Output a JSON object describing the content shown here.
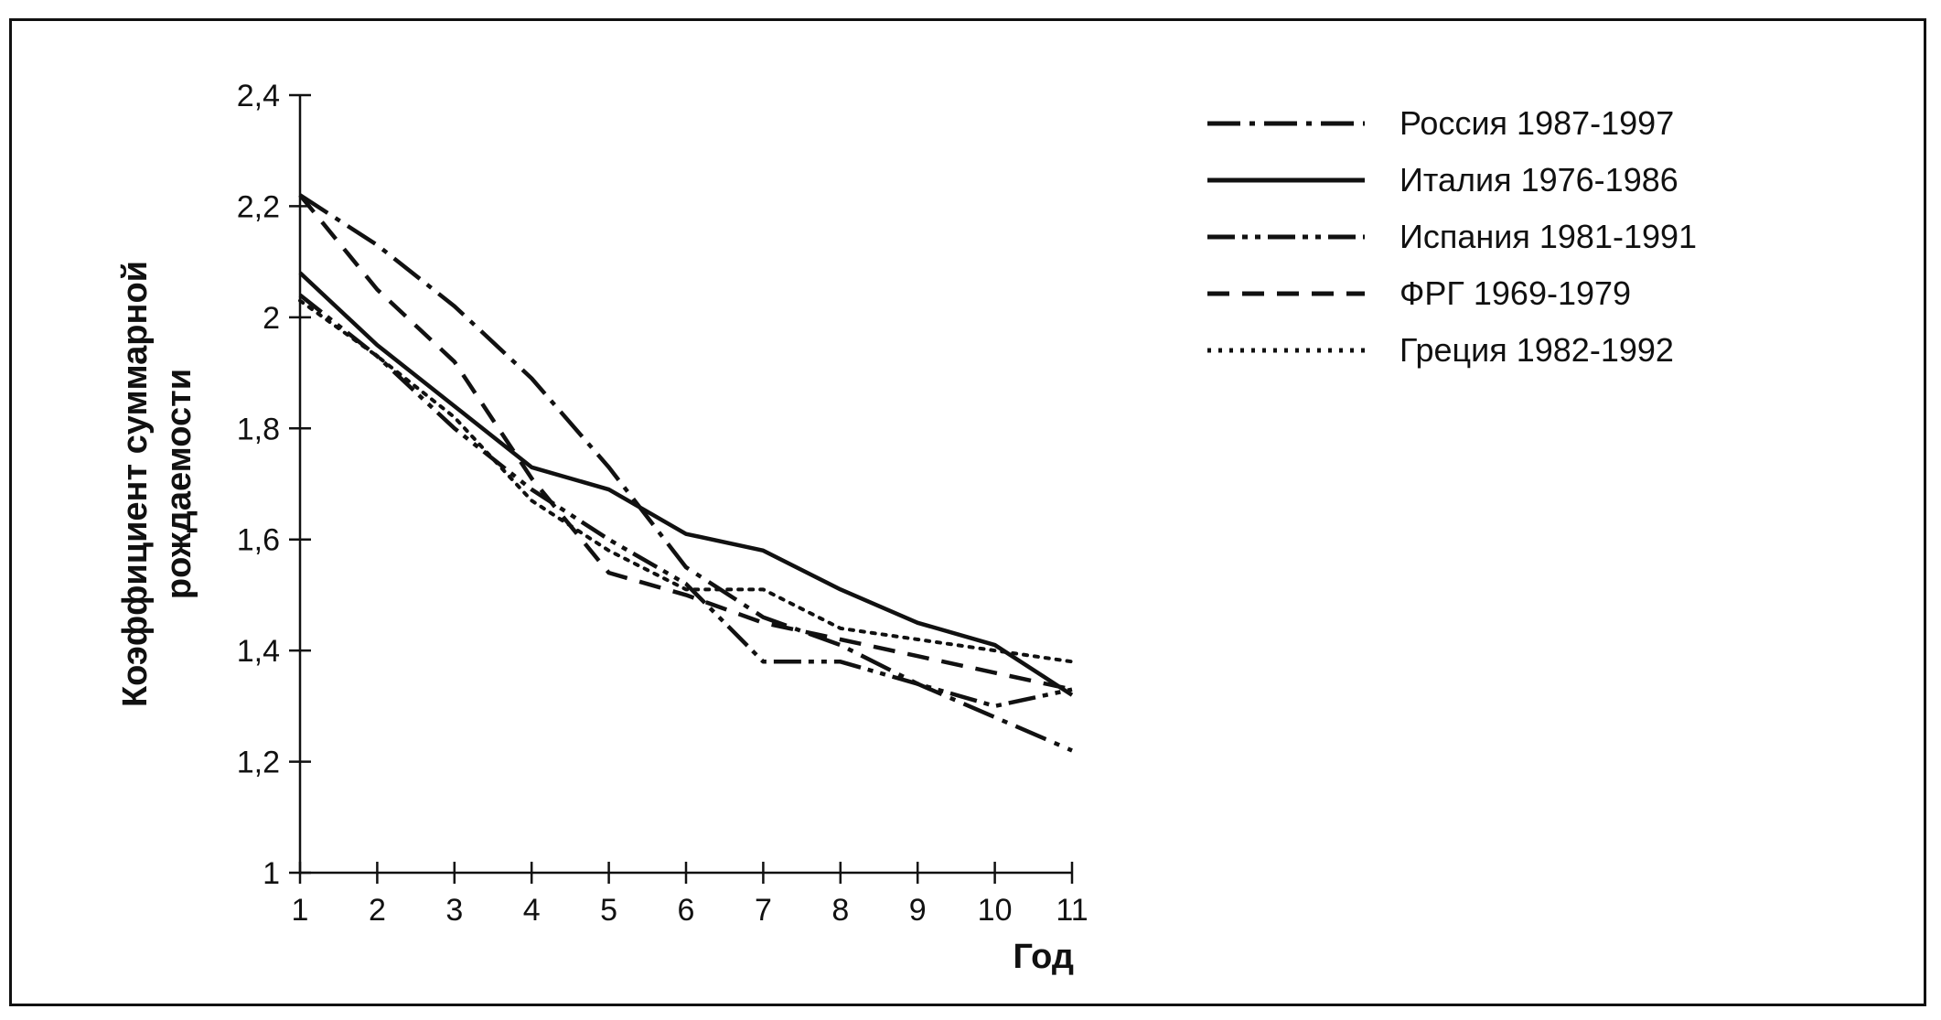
{
  "chart_data": {
    "type": "line",
    "title": "",
    "xlabel": "Год",
    "ylabel": [
      "Коэффициент суммарной",
      "рождаемости"
    ],
    "x": [
      1,
      2,
      3,
      4,
      5,
      6,
      7,
      8,
      9,
      10,
      11
    ],
    "xticks": [
      "1",
      "2",
      "3",
      "4",
      "5",
      "6",
      "7",
      "8",
      "9",
      "10",
      "11"
    ],
    "ylim": [
      1,
      2.4
    ],
    "yticks": [
      "1",
      "1,2",
      "1,4",
      "1,6",
      "1,8",
      "2",
      "2,2",
      "2,4"
    ],
    "grid": false,
    "legend_position": "right",
    "series": [
      {
        "name": "Россия 1987-1997",
        "style": "dash-dot",
        "values": [
          2.22,
          2.13,
          2.02,
          1.89,
          1.73,
          1.55,
          1.46,
          1.41,
          1.34,
          1.28,
          1.22
        ]
      },
      {
        "name": "Италия 1976-1986",
        "style": "solid",
        "values": [
          2.08,
          1.95,
          1.84,
          1.73,
          1.69,
          1.61,
          1.58,
          1.51,
          1.45,
          1.41,
          1.32
        ]
      },
      {
        "name": "Испания 1981-1991",
        "style": "dash-dot-dot",
        "values": [
          2.04,
          1.93,
          1.8,
          1.69,
          1.6,
          1.52,
          1.38,
          1.38,
          1.34,
          1.3,
          1.33
        ]
      },
      {
        "name": "ФРГ 1969-1979",
        "style": "dashed",
        "values": [
          2.22,
          2.05,
          1.92,
          1.71,
          1.54,
          1.5,
          1.45,
          1.42,
          1.39,
          1.36,
          1.33
        ]
      },
      {
        "name": "Греция 1982-1992",
        "style": "dotted",
        "values": [
          2.03,
          1.93,
          1.82,
          1.67,
          1.58,
          1.51,
          1.51,
          1.44,
          1.42,
          1.4,
          1.38
        ]
      }
    ],
    "colors": {
      "line": "#111111",
      "background": "#ffffff"
    }
  }
}
